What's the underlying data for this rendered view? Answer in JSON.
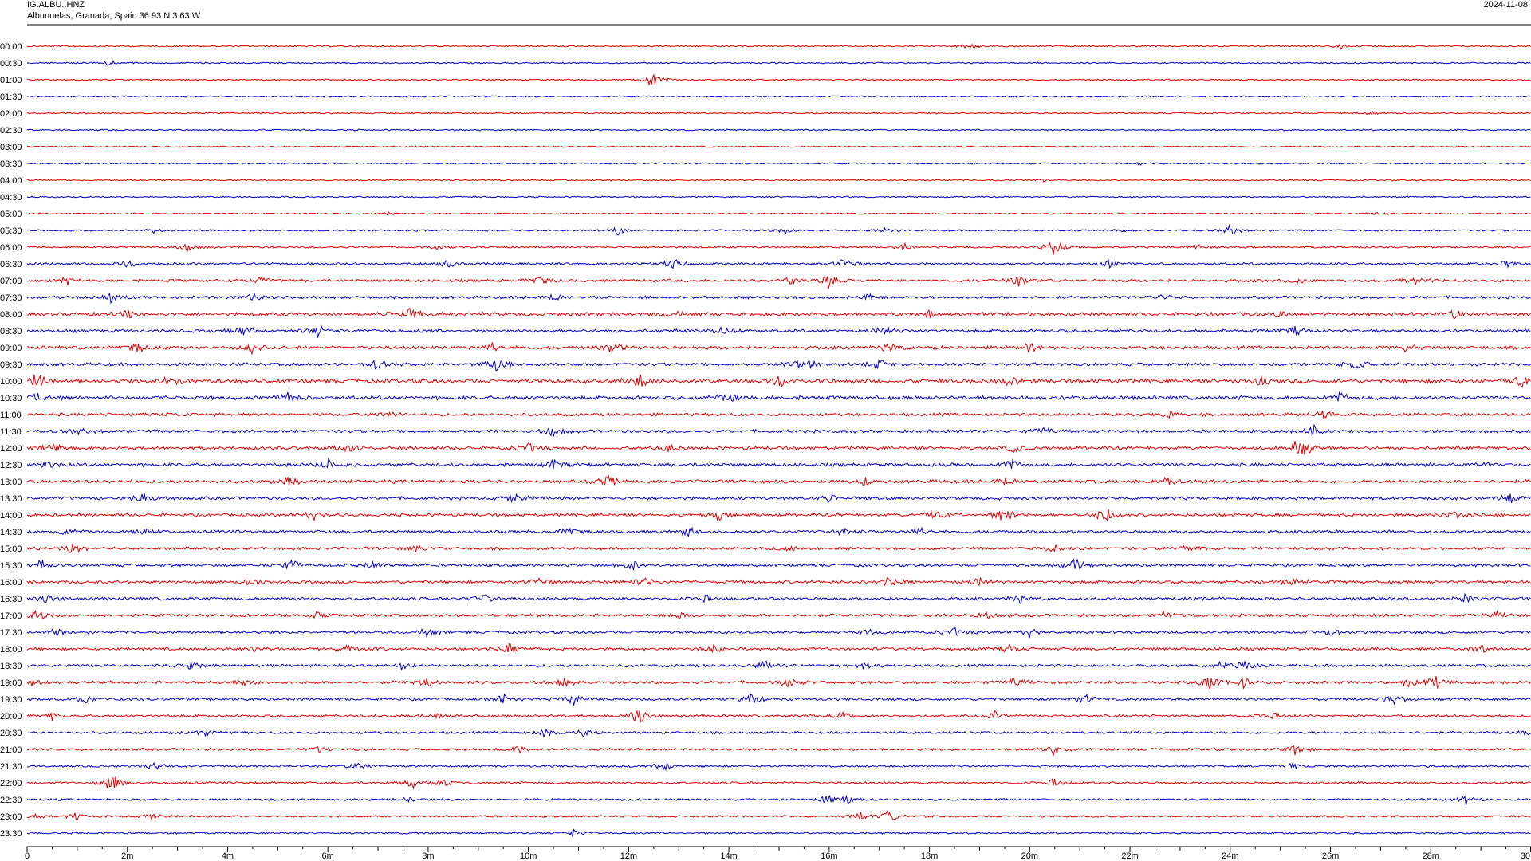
{
  "header": {
    "station": "IG.ALBU..HNZ",
    "location": "Albunuelas, Granada, Spain  36.93 N 3.63 W",
    "date": "2024-11-08"
  },
  "chart_data": {
    "type": "line",
    "plot_kind": "helicorder",
    "title": "IG.ALBU..HNZ",
    "xlabel": "",
    "ylabel": "",
    "xlim": [
      0,
      30
    ],
    "x_unit": "minutes",
    "x_ticks": [
      {
        "value": 0,
        "label": "0"
      },
      {
        "value": 2,
        "label": "2m"
      },
      {
        "value": 4,
        "label": "4m"
      },
      {
        "value": 6,
        "label": "6m"
      },
      {
        "value": 8,
        "label": "8m"
      },
      {
        "value": 10,
        "label": "10m"
      },
      {
        "value": 12,
        "label": "12m"
      },
      {
        "value": 14,
        "label": "14m"
      },
      {
        "value": 16,
        "label": "16m"
      },
      {
        "value": 18,
        "label": "18m"
      },
      {
        "value": 20,
        "label": "20m"
      },
      {
        "value": 22,
        "label": "22m"
      },
      {
        "value": 24,
        "label": "24m"
      },
      {
        "value": 26,
        "label": "26m"
      },
      {
        "value": 28,
        "label": "28m"
      },
      {
        "value": 30,
        "label": "30"
      }
    ],
    "trace_colors": [
      "#e00000",
      "#0000c8"
    ],
    "rows": [
      {
        "label": "00:00",
        "activity": 0.05,
        "events": [
          [
            18.8,
            0.4
          ],
          [
            26.2,
            0.3
          ]
        ]
      },
      {
        "label": "00:30",
        "activity": 0.05,
        "events": [
          [
            1.7,
            0.5
          ]
        ]
      },
      {
        "label": "01:00",
        "activity": 0.05,
        "events": [
          [
            12.5,
            1.6
          ]
        ]
      },
      {
        "label": "01:30",
        "activity": 0.03,
        "events": []
      },
      {
        "label": "02:00",
        "activity": 0.04,
        "events": [
          [
            26.8,
            0.3
          ]
        ]
      },
      {
        "label": "02:30",
        "activity": 0.03,
        "events": []
      },
      {
        "label": "03:00",
        "activity": 0.03,
        "events": []
      },
      {
        "label": "03:30",
        "activity": 0.04,
        "events": [
          [
            22.2,
            0.3
          ]
        ]
      },
      {
        "label": "04:00",
        "activity": 0.03,
        "events": [
          [
            20.3,
            0.2
          ]
        ]
      },
      {
        "label": "04:30",
        "activity": 0.03,
        "events": []
      },
      {
        "label": "05:00",
        "activity": 0.04,
        "events": [
          [
            7.2,
            0.2
          ],
          [
            26.9,
            0.2
          ]
        ]
      },
      {
        "label": "05:30",
        "activity": 0.12,
        "events": [
          [
            2.5,
            0.4
          ],
          [
            11.8,
            0.6
          ],
          [
            15.1,
            0.5
          ],
          [
            17.1,
            0.4
          ],
          [
            21.9,
            0.3
          ],
          [
            24.0,
            0.9
          ]
        ]
      },
      {
        "label": "06:00",
        "activity": 0.18,
        "events": [
          [
            3.2,
            0.5
          ],
          [
            8.2,
            0.3
          ],
          [
            17.5,
            0.5
          ],
          [
            20.5,
            1.7
          ],
          [
            23.3,
            0.4
          ]
        ]
      },
      {
        "label": "06:30",
        "activity": 0.3,
        "events": [
          [
            2.0,
            0.5
          ],
          [
            8.4,
            0.6
          ],
          [
            12.9,
            0.8
          ],
          [
            16.3,
            0.9
          ],
          [
            21.6,
            0.6
          ],
          [
            29.5,
            0.5
          ]
        ]
      },
      {
        "label": "07:00",
        "activity": 0.4,
        "events": [
          [
            0.8,
            0.6
          ],
          [
            4.7,
            0.6
          ],
          [
            10.2,
            0.6
          ],
          [
            15.2,
            0.8
          ],
          [
            16.0,
            1.1
          ],
          [
            19.8,
            0.9
          ],
          [
            25.3,
            0.6
          ],
          [
            27.7,
            0.7
          ]
        ]
      },
      {
        "label": "07:30",
        "activity": 0.4,
        "events": [
          [
            1.7,
            0.9
          ],
          [
            4.5,
            0.7
          ],
          [
            10.5,
            0.7
          ],
          [
            16.8,
            0.5
          ],
          [
            22.6,
            0.5
          ]
        ]
      },
      {
        "label": "08:00",
        "activity": 0.6,
        "events": [
          [
            2.0,
            0.7
          ],
          [
            7.6,
            1.2
          ],
          [
            12.9,
            0.5
          ],
          [
            18.0,
            0.5
          ],
          [
            25.0,
            0.5
          ],
          [
            28.5,
            0.7
          ]
        ]
      },
      {
        "label": "08:30",
        "activity": 0.5,
        "events": [
          [
            4.3,
            0.8
          ],
          [
            5.8,
            1.1
          ],
          [
            13.9,
            0.6
          ],
          [
            17.1,
            0.7
          ],
          [
            25.3,
            0.6
          ]
        ]
      },
      {
        "label": "09:00",
        "activity": 0.55,
        "events": [
          [
            2.2,
            0.7
          ],
          [
            4.5,
            0.8
          ],
          [
            9.3,
            0.7
          ],
          [
            11.7,
            1.0
          ],
          [
            17.2,
            0.9
          ],
          [
            20.0,
            0.6
          ],
          [
            27.5,
            0.6
          ]
        ]
      },
      {
        "label": "09:30",
        "activity": 0.5,
        "events": [
          [
            7.0,
            0.8
          ],
          [
            9.4,
            1.5
          ],
          [
            15.5,
            1.3
          ],
          [
            17.0,
            0.7
          ],
          [
            26.5,
            0.8
          ]
        ]
      },
      {
        "label": "10:00",
        "activity": 0.75,
        "events": [
          [
            0.2,
            1.2
          ],
          [
            2.9,
            1.3
          ],
          [
            12.2,
            1.3
          ],
          [
            15.0,
            0.8
          ],
          [
            19.6,
            0.7
          ],
          [
            24.6,
            0.7
          ],
          [
            29.8,
            0.8
          ]
        ]
      },
      {
        "label": "10:30",
        "activity": 0.7,
        "events": [
          [
            0.3,
            1.0
          ],
          [
            5.2,
            0.8
          ],
          [
            14.0,
            0.7
          ],
          [
            26.2,
            0.8
          ]
        ]
      },
      {
        "label": "11:00",
        "activity": 0.45,
        "events": [
          [
            2.9,
            0.5
          ],
          [
            7.2,
            0.5
          ],
          [
            22.8,
            0.5
          ],
          [
            25.9,
            0.7
          ]
        ]
      },
      {
        "label": "11:30",
        "activity": 0.5,
        "events": [
          [
            1.0,
            0.6
          ],
          [
            10.5,
            0.7
          ],
          [
            20.3,
            0.8
          ],
          [
            25.6,
            1.2
          ]
        ]
      },
      {
        "label": "12:00",
        "activity": 0.5,
        "events": [
          [
            0.5,
            0.7
          ],
          [
            6.4,
            0.7
          ],
          [
            10.0,
            0.7
          ],
          [
            12.8,
            0.6
          ],
          [
            19.7,
            0.7
          ],
          [
            25.3,
            0.9
          ],
          [
            25.5,
            1.2
          ]
        ]
      },
      {
        "label": "12:30",
        "activity": 0.55,
        "events": [
          [
            0.4,
            0.6
          ],
          [
            6.0,
            0.9
          ],
          [
            10.5,
            0.7
          ],
          [
            19.6,
            1.0
          ],
          [
            29.0,
            0.5
          ]
        ]
      },
      {
        "label": "13:00",
        "activity": 0.55,
        "events": [
          [
            5.2,
            0.8
          ],
          [
            11.6,
            0.8
          ],
          [
            16.7,
            0.5
          ],
          [
            19.5,
            0.8
          ],
          [
            22.7,
            1.0
          ]
        ]
      },
      {
        "label": "13:30",
        "activity": 0.5,
        "events": [
          [
            2.3,
            1.0
          ],
          [
            9.7,
            0.7
          ],
          [
            16.0,
            0.5
          ],
          [
            29.6,
            0.9
          ]
        ]
      },
      {
        "label": "14:00",
        "activity": 0.45,
        "events": [
          [
            5.7,
            0.7
          ],
          [
            13.8,
            0.6
          ],
          [
            18.1,
            0.7
          ],
          [
            19.5,
            1.6
          ],
          [
            21.5,
            1.3
          ],
          [
            28.5,
            0.6
          ]
        ]
      },
      {
        "label": "14:30",
        "activity": 0.45,
        "events": [
          [
            0.8,
            0.5
          ],
          [
            2.4,
            0.7
          ],
          [
            10.8,
            0.6
          ],
          [
            13.2,
            0.8
          ],
          [
            16.3,
            0.7
          ],
          [
            17.8,
            0.6
          ]
        ]
      },
      {
        "label": "15:00",
        "activity": 0.4,
        "events": [
          [
            0.9,
            0.9
          ],
          [
            7.8,
            0.6
          ],
          [
            15.2,
            0.6
          ],
          [
            20.5,
            0.7
          ],
          [
            23.2,
            0.7
          ]
        ]
      },
      {
        "label": "15:30",
        "activity": 0.45,
        "events": [
          [
            0.3,
            0.7
          ],
          [
            5.3,
            0.8
          ],
          [
            6.9,
            0.8
          ],
          [
            12.1,
            0.8
          ],
          [
            20.9,
            1.1
          ]
        ]
      },
      {
        "label": "16:00",
        "activity": 0.45,
        "events": [
          [
            4.5,
            0.8
          ],
          [
            10.2,
            0.6
          ],
          [
            12.3,
            0.9
          ],
          [
            17.2,
            0.7
          ],
          [
            19.0,
            0.7
          ],
          [
            25.3,
            0.7
          ]
        ]
      },
      {
        "label": "16:30",
        "activity": 0.45,
        "events": [
          [
            0.4,
            0.8
          ],
          [
            9.1,
            0.8
          ],
          [
            13.5,
            0.6
          ],
          [
            19.8,
            0.8
          ],
          [
            28.7,
            0.6
          ]
        ]
      },
      {
        "label": "17:00",
        "activity": 0.45,
        "events": [
          [
            0.2,
            0.8
          ],
          [
            5.8,
            0.5
          ],
          [
            13.0,
            0.6
          ],
          [
            19.1,
            0.5
          ],
          [
            22.7,
            0.6
          ],
          [
            29.3,
            0.5
          ]
        ]
      },
      {
        "label": "17:30",
        "activity": 0.4,
        "events": [
          [
            0.6,
            0.6
          ],
          [
            8.0,
            0.6
          ],
          [
            16.8,
            0.5
          ],
          [
            18.5,
            0.6
          ],
          [
            20.0,
            0.7
          ],
          [
            26.0,
            0.6
          ]
        ]
      },
      {
        "label": "18:00",
        "activity": 0.4,
        "events": [
          [
            4.5,
            0.6
          ],
          [
            6.4,
            0.6
          ],
          [
            9.6,
            0.8
          ],
          [
            13.7,
            0.6
          ],
          [
            19.6,
            0.6
          ],
          [
            29.0,
            0.6
          ]
        ]
      },
      {
        "label": "18:30",
        "activity": 0.4,
        "events": [
          [
            3.3,
            0.7
          ],
          [
            7.5,
            0.6
          ],
          [
            14.7,
            0.8
          ],
          [
            16.7,
            0.6
          ],
          [
            23.8,
            0.7
          ],
          [
            24.3,
            0.7
          ]
        ]
      },
      {
        "label": "19:00",
        "activity": 0.45,
        "events": [
          [
            0.1,
            0.6
          ],
          [
            4.3,
            0.6
          ],
          [
            8.0,
            0.7
          ],
          [
            10.7,
            0.6
          ],
          [
            15.2,
            0.8
          ],
          [
            19.7,
            1.0
          ],
          [
            23.6,
            1.1
          ],
          [
            24.3,
            0.9
          ],
          [
            27.6,
            1.0
          ],
          [
            28.1,
            1.1
          ]
        ]
      },
      {
        "label": "19:30",
        "activity": 0.4,
        "events": [
          [
            1.2,
            0.6
          ],
          [
            9.5,
            0.8
          ],
          [
            10.9,
            0.8
          ],
          [
            14.5,
            0.9
          ],
          [
            21.1,
            0.9
          ],
          [
            27.3,
            0.9
          ]
        ]
      },
      {
        "label": "20:00",
        "activity": 0.35,
        "events": [
          [
            0.5,
            0.5
          ],
          [
            8.1,
            0.6
          ],
          [
            12.2,
            1.6
          ],
          [
            16.3,
            0.6
          ],
          [
            19.3,
            0.8
          ],
          [
            24.8,
            0.6
          ]
        ]
      },
      {
        "label": "20:30",
        "activity": 0.3,
        "events": [
          [
            3.5,
            0.6
          ],
          [
            10.3,
            0.6
          ],
          [
            11.1,
            0.6
          ],
          [
            29.9,
            0.5
          ]
        ]
      },
      {
        "label": "21:00",
        "activity": 0.3,
        "events": [
          [
            5.8,
            0.5
          ],
          [
            9.8,
            0.6
          ],
          [
            20.5,
            1.0
          ],
          [
            25.3,
            1.0
          ]
        ]
      },
      {
        "label": "21:30",
        "activity": 0.25,
        "events": [
          [
            2.6,
            0.6
          ],
          [
            6.6,
            0.6
          ],
          [
            12.7,
            0.8
          ],
          [
            25.2,
            0.6
          ]
        ]
      },
      {
        "label": "22:00",
        "activity": 0.25,
        "events": [
          [
            1.7,
            1.6
          ],
          [
            7.7,
            0.9
          ],
          [
            8.3,
            0.5
          ],
          [
            20.5,
            0.6
          ]
        ]
      },
      {
        "label": "22:30",
        "activity": 0.2,
        "events": [
          [
            7.6,
            0.4
          ],
          [
            16.0,
            0.8
          ],
          [
            16.4,
            0.8
          ],
          [
            28.7,
            0.8
          ]
        ]
      },
      {
        "label": "23:00",
        "activity": 0.2,
        "events": [
          [
            0.2,
            0.4
          ],
          [
            1.0,
            0.7
          ],
          [
            2.5,
            0.5
          ],
          [
            16.6,
            0.6
          ],
          [
            17.2,
            0.9
          ]
        ]
      },
      {
        "label": "23:30",
        "activity": 0.15,
        "events": [
          [
            10.9,
            0.5
          ]
        ]
      }
    ]
  }
}
